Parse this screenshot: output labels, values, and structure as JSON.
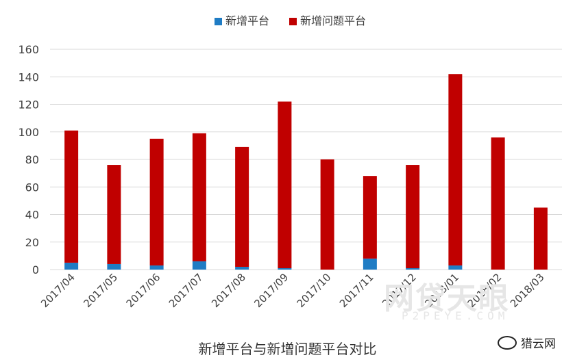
{
  "chart_data": {
    "type": "bar",
    "stacked": true,
    "categories": [
      "2017/04",
      "2017/05",
      "2017/06",
      "2017/07",
      "2017/08",
      "2017/09",
      "2017/10",
      "2017/11",
      "2017/12",
      "2018/01",
      "2018/02",
      "2018/03"
    ],
    "series": [
      {
        "name": "新增平台",
        "color": "#1f7cc4",
        "values": [
          5,
          4,
          3,
          6,
          2,
          1,
          0,
          8,
          1,
          3,
          0,
          0
        ]
      },
      {
        "name": "新增问题平台",
        "color": "#c00000",
        "values": [
          96,
          72,
          92,
          93,
          87,
          121,
          80,
          60,
          75,
          139,
          96,
          45
        ]
      }
    ],
    "ylim": [
      0,
      160
    ],
    "yticks": [
      0,
      20,
      40,
      60,
      80,
      100,
      120,
      140,
      160
    ],
    "grid": true,
    "legend_position": "top-center"
  },
  "caption": "新增平台与新增问题平台对比",
  "watermark": {
    "main": "网贷天眼",
    "sub": "P2PEYE.COM"
  },
  "logo_text": "猎云网"
}
